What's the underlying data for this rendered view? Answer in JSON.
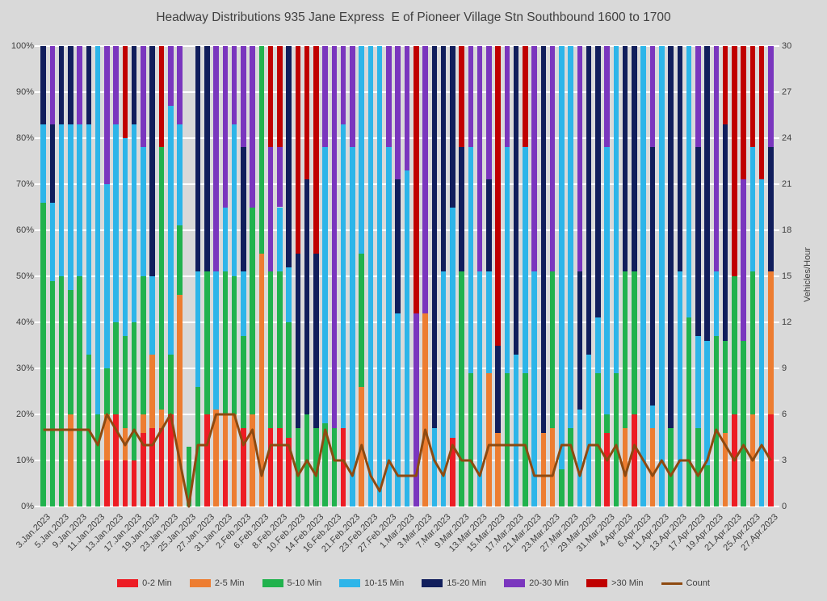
{
  "title": "Headway Distributions 935 Jane Express  E of Pioneer Village Stn Southbound 1600 to 1700",
  "chart_data": {
    "type": "bar",
    "subtype": "stacked-percent-with-line",
    "title": "Headway Distributions 935 Jane Express  E of Pioneer Village Stn Southbound 1600 to 1700",
    "categories": [
      "3.Jan.2023",
      "4.Jan.2023",
      "5.Jan.2023",
      "6.Jan.2023",
      "9.Jan.2023",
      "10.Jan.2023",
      "11.Jan.2023",
      "12.Jan.2023",
      "13.Jan.2023",
      "16.Jan.2023",
      "17.Jan.2023",
      "18.Jan.2023",
      "19.Jan.2023",
      "20.Jan.2023",
      "23.Jan.2023",
      "24.Jan.2023",
      "25.Jan.2023",
      "26.Jan.2023",
      "27.Jan.2023",
      "30.Jan.2023",
      "31.Jan.2023",
      "1.Feb.2023",
      "2.Feb.2023",
      "3.Feb.2023",
      "6.Feb.2023",
      "7.Feb.2023",
      "8.Feb.2023",
      "9.Feb.2023",
      "10.Feb.2023",
      "13.Feb.2023",
      "14.Feb.2023",
      "15.Feb.2023",
      "16.Feb.2023",
      "17.Feb.2023",
      "21.Feb.2023",
      "22.Feb.2023",
      "23.Feb.2023",
      "24.Feb.2023",
      "27.Feb.2023",
      "28.Feb.2023",
      "1.Mar.2023",
      "2.Mar.2023",
      "3.Mar.2023",
      "6.Mar.2023",
      "7.Mar.2023",
      "8.Mar.2023",
      "9.Mar.2023",
      "10.Mar.2023",
      "13.Mar.2023",
      "14.Mar.2023",
      "15.Mar.2023",
      "16.Mar.2023",
      "17.Mar.2023",
      "20.Mar.2023",
      "21.Mar.2023",
      "22.Mar.2023",
      "23.Mar.2023",
      "24.Mar.2023",
      "27.Mar.2023",
      "28.Mar.2023",
      "29.Mar.2023",
      "30.Mar.2023",
      "31.Mar.2023",
      "3.Apr.2023",
      "4.Apr.2023",
      "5.Apr.2023",
      "6.Apr.2023",
      "10.Apr.2023",
      "11.Apr.2023",
      "12.Apr.2023",
      "13.Apr.2023",
      "14.Apr.2023",
      "17.Apr.2023",
      "18.Apr.2023",
      "19.Apr.2023",
      "20.Apr.2023",
      "21.Apr.2023",
      "24.Apr.2023",
      "25.Apr.2023",
      "26.Apr.2023",
      "27.Apr.2023"
    ],
    "label_every_other_starting_first": true,
    "series": [
      {
        "name": "0-2 Min",
        "color": "#ED1C24",
        "values": [
          0,
          0,
          0,
          0,
          0,
          0,
          0,
          10,
          20,
          10,
          10,
          16,
          17,
          17,
          20,
          0,
          0,
          0,
          20,
          0,
          10,
          0,
          17,
          0,
          0,
          17,
          17,
          15,
          0,
          0,
          0,
          0,
          0,
          17,
          0,
          0,
          0,
          0,
          0,
          0,
          0,
          0,
          0,
          0,
          0,
          15,
          0,
          0,
          0,
          0,
          0,
          0,
          0,
          0,
          0,
          0,
          0,
          0,
          0,
          0,
          0,
          0,
          16,
          0,
          0,
          20,
          0,
          0,
          0,
          0,
          0,
          0,
          0,
          0,
          0,
          0,
          20,
          0,
          0,
          0,
          20
        ]
      },
      {
        "name": "2-5 Min",
        "color": "#ED7D31",
        "values": [
          0,
          0,
          0,
          20,
          0,
          0,
          0,
          10,
          0,
          7,
          0,
          4,
          16,
          4,
          0,
          46,
          0,
          0,
          0,
          21,
          10,
          20,
          0,
          20,
          55,
          0,
          0,
          0,
          0,
          0,
          0,
          0,
          0,
          0,
          0,
          26,
          0,
          0,
          0,
          0,
          0,
          0,
          42,
          0,
          0,
          0,
          0,
          0,
          0,
          29,
          16,
          0,
          0,
          0,
          0,
          16,
          17,
          0,
          0,
          0,
          0,
          0,
          0,
          0,
          17,
          0,
          0,
          17,
          0,
          0,
          0,
          0,
          0,
          0,
          0,
          16,
          0,
          0,
          20,
          0,
          31
        ]
      },
      {
        "name": "5-10 Min",
        "color": "#21B24D",
        "values": [
          66,
          49,
          50,
          27,
          50,
          33,
          20,
          10,
          20,
          20,
          30,
          30,
          0,
          57,
          13,
          15,
          13,
          26,
          31,
          0,
          31,
          30,
          20,
          45,
          45,
          34,
          34,
          25,
          17,
          20,
          17,
          18,
          17,
          0,
          0,
          29,
          0,
          0,
          0,
          0,
          0,
          0,
          0,
          0,
          0,
          0,
          51,
          29,
          0,
          0,
          0,
          29,
          0,
          29,
          0,
          0,
          34,
          8,
          17,
          0,
          0,
          29,
          4,
          29,
          34,
          31,
          0,
          0,
          0,
          17,
          0,
          41,
          17,
          9,
          37,
          20,
          30,
          36,
          31,
          0,
          0
        ]
      },
      {
        "name": "10-15 Min",
        "color": "#2DB5E9",
        "values": [
          17,
          17,
          33,
          36,
          33,
          50,
          80,
          40,
          43,
          43,
          43,
          28,
          17,
          0,
          54,
          22,
          0,
          25,
          0,
          30,
          14,
          33,
          14,
          0,
          0,
          0,
          14,
          12,
          0,
          0,
          0,
          60,
          0,
          66,
          78,
          45,
          100,
          100,
          78,
          42,
          73,
          0,
          0,
          17,
          51,
          50,
          0,
          49,
          51,
          22,
          0,
          49,
          33,
          49,
          51,
          0,
          0,
          92,
          83,
          21,
          33,
          12,
          58,
          71,
          0,
          0,
          100,
          5,
          100,
          0,
          51,
          59,
          20,
          27,
          14,
          0,
          0,
          0,
          27,
          71,
          0
        ]
      },
      {
        "name": "15-20 Min",
        "color": "#111E5C",
        "values": [
          17,
          17,
          17,
          17,
          0,
          17,
          0,
          0,
          0,
          0,
          17,
          0,
          50,
          0,
          0,
          0,
          0,
          49,
          49,
          0,
          0,
          0,
          27,
          0,
          0,
          0,
          0,
          48,
          38,
          51,
          38,
          0,
          0,
          0,
          0,
          0,
          0,
          0,
          0,
          29,
          0,
          0,
          0,
          83,
          49,
          35,
          27,
          0,
          0,
          20,
          19,
          0,
          67,
          0,
          0,
          84,
          0,
          0,
          0,
          30,
          67,
          59,
          0,
          0,
          49,
          49,
          0,
          56,
          0,
          83,
          49,
          0,
          41,
          64,
          0,
          47,
          0,
          0,
          0,
          0,
          27
        ]
      },
      {
        "name": "20-30 Min",
        "color": "#7A36BE",
        "values": [
          0,
          17,
          0,
          0,
          17,
          0,
          0,
          30,
          17,
          0,
          0,
          22,
          0,
          0,
          13,
          17,
          0,
          0,
          0,
          49,
          35,
          17,
          22,
          35,
          0,
          27,
          13,
          0,
          0,
          0,
          0,
          22,
          83,
          17,
          22,
          0,
          0,
          0,
          22,
          29,
          27,
          42,
          58,
          0,
          0,
          0,
          0,
          22,
          49,
          29,
          0,
          22,
          0,
          0,
          49,
          0,
          49,
          0,
          0,
          49,
          0,
          0,
          22,
          0,
          0,
          0,
          0,
          22,
          0,
          0,
          0,
          0,
          22,
          0,
          49,
          0,
          0,
          35,
          0,
          0,
          22
        ]
      },
      {
        "name": ">30 Min",
        "color": "#C00000",
        "values": [
          0,
          0,
          0,
          0,
          0,
          0,
          0,
          0,
          0,
          20,
          0,
          0,
          0,
          22,
          0,
          0,
          0,
          0,
          0,
          0,
          0,
          0,
          0,
          0,
          0,
          22,
          22,
          0,
          45,
          29,
          45,
          0,
          0,
          0,
          0,
          0,
          0,
          0,
          0,
          0,
          0,
          58,
          0,
          0,
          0,
          0,
          22,
          0,
          0,
          0,
          65,
          0,
          0,
          22,
          0,
          0,
          0,
          0,
          0,
          0,
          0,
          0,
          0,
          0,
          0,
          0,
          0,
          0,
          0,
          0,
          0,
          0,
          0,
          0,
          0,
          17,
          50,
          29,
          22,
          29,
          0
        ]
      }
    ],
    "line": {
      "name": "Count",
      "color": "#8E4A10",
      "axis": "right",
      "values": [
        5,
        5,
        5,
        5,
        5,
        5,
        4,
        6,
        5,
        4,
        5,
        4,
        4,
        5,
        6,
        3,
        0,
        4,
        4,
        6,
        6,
        6,
        4,
        5,
        2,
        4,
        4,
        4,
        2,
        3,
        2,
        5,
        3,
        3,
        2,
        4,
        2,
        1,
        3,
        2,
        2,
        2,
        5,
        3,
        2,
        4,
        3,
        3,
        2,
        4,
        4,
        4,
        4,
        4,
        2,
        2,
        2,
        4,
        4,
        2,
        4,
        4,
        3,
        4,
        2,
        4,
        3,
        2,
        3,
        2,
        3,
        3,
        2,
        3,
        5,
        4,
        3,
        4,
        3,
        4,
        3
      ]
    },
    "left_axis": {
      "ticks": [
        "100%",
        "90%",
        "80%",
        "70%",
        "60%",
        "50%",
        "40%",
        "30%",
        "20%",
        "10%",
        "0%"
      ],
      "min": 0,
      "max": 100
    },
    "right_axis": {
      "label": "Vehicles/Hour",
      "ticks": [
        "30",
        "27",
        "24",
        "21",
        "18",
        "15",
        "12",
        "9",
        "6",
        "3",
        "0"
      ],
      "min": 0,
      "max": 30
    },
    "grid": true,
    "legend_position": "bottom"
  },
  "legend": {
    "items": [
      "0-2 Min",
      "2-5 Min",
      "5-10 Min",
      "10-15 Min",
      "15-20 Min",
      "20-30 Min",
      ">30 Min",
      "Count"
    ]
  }
}
